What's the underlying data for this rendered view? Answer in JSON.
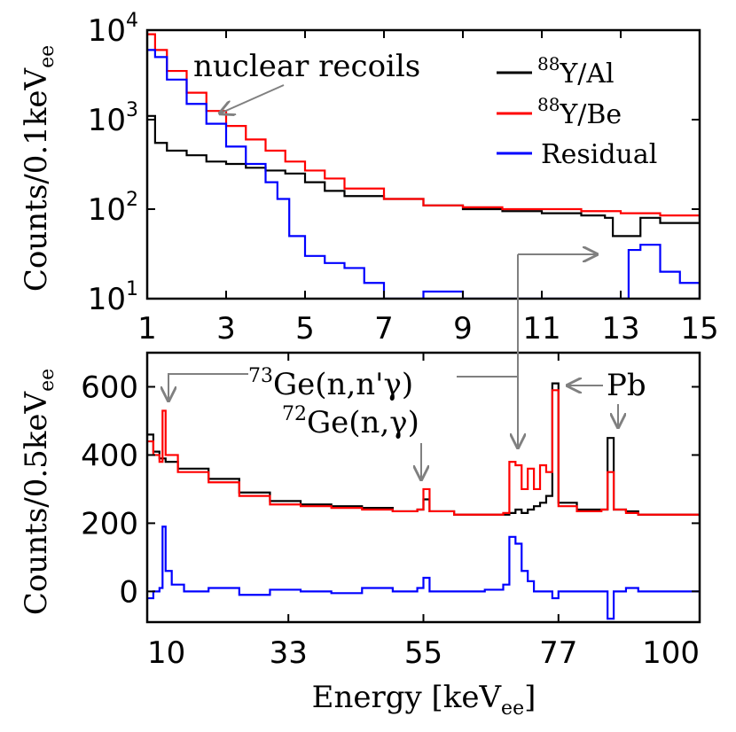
{
  "chart_data": [
    {
      "type": "line",
      "panel": "top",
      "xlabel": "",
      "ylabel": "Counts/0.1keV",
      "ylabel_sub": "ee",
      "xlim": [
        1,
        15
      ],
      "ylim": [
        10,
        10000
      ],
      "yscale": "log",
      "x_ticks": [
        "1",
        "3",
        "5",
        "7",
        "9",
        "11",
        "13",
        "15"
      ],
      "y_ticks": [
        {
          "base": "10",
          "exp": "1",
          "value": 10
        },
        {
          "base": "10",
          "exp": "2",
          "value": 100
        },
        {
          "base": "10",
          "exp": "3",
          "value": 1000
        },
        {
          "base": "10",
          "exp": "4",
          "value": 10000
        }
      ],
      "legend": {
        "position": "top-right",
        "entries": [
          {
            "sup": "88",
            "label": "Y/Al",
            "color": "#000000"
          },
          {
            "sup": "88",
            "label": "Y/Be",
            "color": "#ff0000"
          },
          {
            "sup": "",
            "label": "Residual",
            "color": "#0000ff"
          }
        ]
      },
      "annotations": [
        {
          "text": "nuclear recoils",
          "x": 2.8,
          "y": 1300
        }
      ],
      "series": [
        {
          "name": "88Y/Al",
          "color": "#000000",
          "x": [
            1.0,
            1.2,
            1.5,
            2.0,
            2.5,
            3.0,
            3.5,
            4.0,
            4.5,
            5.0,
            5.5,
            6.0,
            7.0,
            8.0,
            9.0,
            10.0,
            11.0,
            12.0,
            12.6,
            12.8,
            13.5,
            14.0,
            15.0
          ],
          "y": [
            1100,
            550,
            450,
            400,
            340,
            320,
            290,
            270,
            250,
            200,
            160,
            140,
            130,
            110,
            100,
            95,
            90,
            85,
            80,
            50,
            80,
            70,
            70
          ]
        },
        {
          "name": "88Y/Be",
          "color": "#ff0000",
          "x": [
            1.0,
            1.2,
            1.5,
            2.0,
            2.5,
            3.0,
            3.5,
            4.0,
            4.5,
            5.0,
            5.5,
            6.0,
            7.0,
            8.0,
            9.0,
            10.0,
            11.0,
            12.0,
            13.0,
            14.0,
            15.0
          ],
          "y": [
            9000,
            6000,
            3500,
            2000,
            1250,
            850,
            600,
            450,
            340,
            270,
            220,
            170,
            130,
            110,
            105,
            100,
            100,
            95,
            90,
            85,
            75
          ]
        },
        {
          "name": "Residual",
          "color": "#0000ff",
          "x": [
            1.0,
            1.2,
            1.5,
            2.0,
            2.5,
            3.0,
            3.5,
            4.0,
            4.3,
            4.6,
            5.0,
            5.5,
            6.0,
            6.5,
            7.0,
            8.0,
            9.0,
            10.0,
            11.0,
            12.0,
            12.9,
            13.2,
            13.5,
            14.0,
            14.5,
            15.0
          ],
          "y": [
            6000,
            5000,
            2800,
            1500,
            900,
            500,
            320,
            200,
            130,
            50,
            30,
            25,
            22,
            15,
            10,
            12,
            10,
            10,
            10,
            10,
            10,
            35,
            40,
            20,
            15,
            10
          ]
        }
      ]
    },
    {
      "type": "line",
      "panel": "bottom",
      "xlabel": "Energy [keV",
      "xlabel_sub": "ee",
      "xlabel_tail": "]",
      "ylabel": "Counts/0.5keV",
      "ylabel_sub": "ee",
      "xlim": [
        10,
        100
      ],
      "ylim": [
        -90,
        700
      ],
      "x_ticks": [
        "10",
        "33",
        "55",
        "77",
        "100"
      ],
      "x_tick_values": [
        10,
        33,
        55,
        77,
        100
      ],
      "y_ticks": [
        "0",
        "200",
        "400",
        "600"
      ],
      "y_tick_values": [
        0,
        200,
        400,
        600
      ],
      "annotations": [
        {
          "sup": "73",
          "text": "Ge(n,n'γ)"
        },
        {
          "sup": "72",
          "text": "Ge(n,γ)"
        },
        {
          "text": "Pb"
        }
      ],
      "series": [
        {
          "name": "88Y/Al",
          "color": "#000000",
          "x": [
            10,
            11,
            12,
            13,
            15,
            20,
            25,
            30,
            35,
            40,
            45,
            50,
            54,
            55,
            56,
            60,
            65,
            69,
            70,
            71,
            72,
            73,
            74,
            75,
            76,
            77,
            80,
            84,
            85,
            86,
            88,
            90,
            95,
            100
          ],
          "y": [
            460,
            410,
            390,
            380,
            360,
            330,
            290,
            265,
            255,
            250,
            245,
            235,
            240,
            270,
            235,
            225,
            225,
            230,
            240,
            230,
            240,
            250,
            260,
            280,
            610,
            260,
            240,
            240,
            450,
            240,
            235,
            225,
            225,
            220
          ]
        },
        {
          "name": "88Y/Be",
          "color": "#ff0000",
          "x": [
            10,
            11,
            12,
            12.5,
            13,
            15,
            20,
            25,
            30,
            35,
            40,
            45,
            50,
            54,
            55,
            56,
            60,
            65,
            68,
            69,
            70,
            71,
            72,
            73,
            74,
            75,
            76,
            77,
            80,
            84,
            85,
            86,
            88,
            90,
            95,
            100
          ],
          "y": [
            440,
            400,
            380,
            530,
            400,
            350,
            320,
            280,
            255,
            250,
            245,
            240,
            235,
            240,
            300,
            235,
            225,
            225,
            230,
            380,
            370,
            300,
            360,
            300,
            370,
            350,
            590,
            250,
            235,
            240,
            350,
            240,
            230,
            225,
            225,
            220
          ]
        },
        {
          "name": "Residual",
          "color": "#0000ff",
          "x": [
            10,
            11,
            12,
            12.5,
            13,
            14,
            16,
            20,
            25,
            30,
            35,
            40,
            45,
            50,
            54,
            55,
            56,
            60,
            65,
            68,
            69,
            70,
            71,
            72,
            73,
            75,
            76,
            77,
            80,
            84,
            85,
            86,
            88,
            90,
            95,
            100
          ],
          "y": [
            -20,
            0,
            10,
            190,
            60,
            20,
            0,
            10,
            -10,
            5,
            0,
            -5,
            10,
            0,
            10,
            40,
            0,
            0,
            5,
            20,
            160,
            140,
            60,
            30,
            0,
            0,
            -20,
            0,
            0,
            0,
            -80,
            0,
            10,
            0,
            0,
            0
          ]
        }
      ]
    }
  ]
}
